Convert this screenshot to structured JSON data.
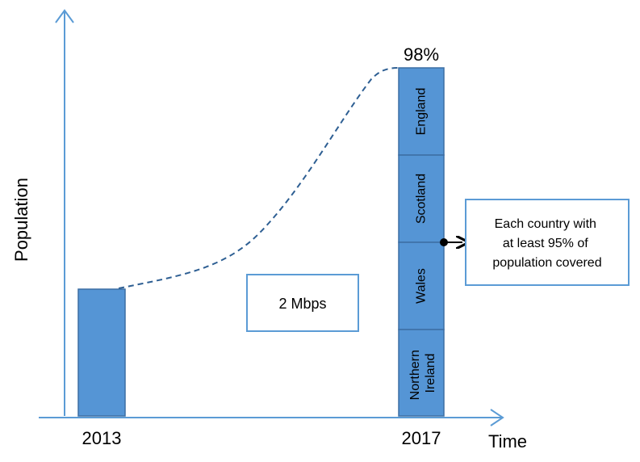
{
  "axes": {
    "y_label": "Population",
    "x_label": "Time"
  },
  "bars": [
    {
      "label": "2013"
    },
    {
      "label": "2017",
      "top_label": "98%",
      "segments": [
        "England",
        "Scotland",
        "Wales",
        "Northern Ireland"
      ]
    }
  ],
  "speed_box": {
    "text": "2 Mbps"
  },
  "callout": {
    "lines": [
      "Each country with",
      "at least 95% of",
      "population covered"
    ]
  },
  "colors": {
    "bar_fill": "#5595d5",
    "bar_stroke": "#3d6ea3",
    "axis": "#5b9bd5",
    "dashed_curve": "#2e5f93",
    "box_stroke": "#5b9bd5"
  }
}
